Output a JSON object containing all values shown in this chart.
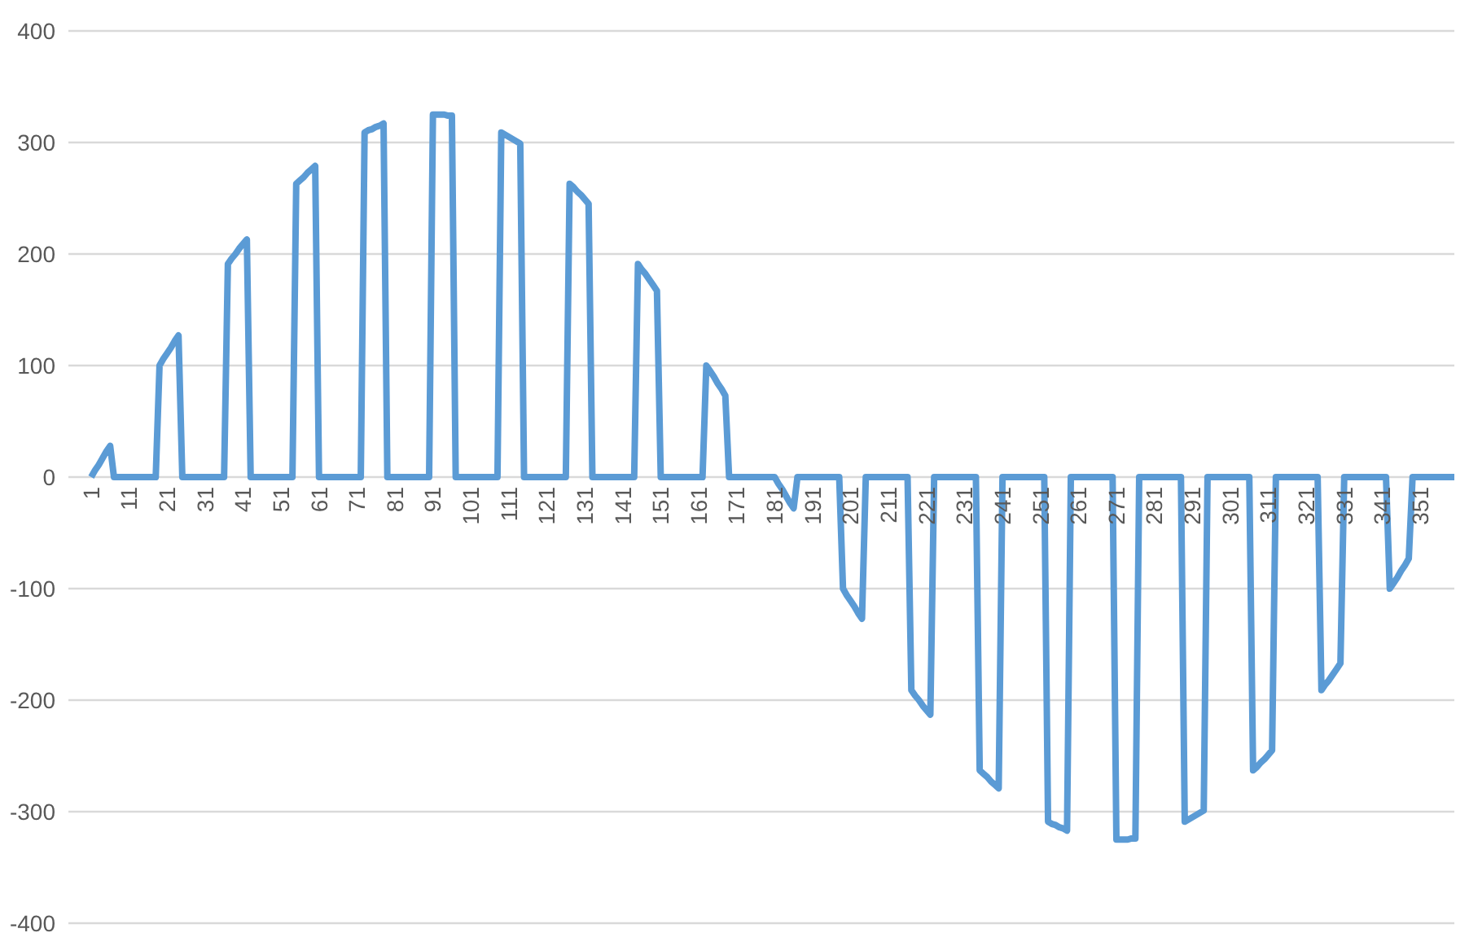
{
  "chart_data": {
    "type": "line",
    "x": [
      1,
      2,
      3,
      4,
      5,
      6,
      7,
      8,
      9,
      10,
      11,
      12,
      13,
      14,
      15,
      16,
      17,
      18,
      19,
      20,
      21,
      22,
      23,
      24,
      25,
      26,
      27,
      28,
      29,
      30,
      31,
      32,
      33,
      34,
      35,
      36,
      37,
      38,
      39,
      40,
      41,
      42,
      43,
      44,
      45,
      46,
      47,
      48,
      49,
      50,
      51,
      52,
      53,
      54,
      55,
      56,
      57,
      58,
      59,
      60,
      61,
      62,
      63,
      64,
      65,
      66,
      67,
      68,
      69,
      70,
      71,
      72,
      73,
      74,
      75,
      76,
      77,
      78,
      79,
      80,
      81,
      82,
      83,
      84,
      85,
      86,
      87,
      88,
      89,
      90,
      91,
      92,
      93,
      94,
      95,
      96,
      97,
      98,
      99,
      100,
      101,
      102,
      103,
      104,
      105,
      106,
      107,
      108,
      109,
      110,
      111,
      112,
      113,
      114,
      115,
      116,
      117,
      118,
      119,
      120,
      121,
      122,
      123,
      124,
      125,
      126,
      127,
      128,
      129,
      130,
      131,
      132,
      133,
      134,
      135,
      136,
      137,
      138,
      139,
      140,
      141,
      142,
      143,
      144,
      145,
      146,
      147,
      148,
      149,
      150,
      151,
      152,
      153,
      154,
      155,
      156,
      157,
      158,
      159,
      160,
      161,
      162,
      163,
      164,
      165,
      166,
      167,
      168,
      169,
      170,
      171,
      172,
      173,
      174,
      175,
      176,
      177,
      178,
      179,
      180,
      181,
      182,
      183,
      184,
      185,
      186,
      187,
      188,
      189,
      190,
      191,
      192,
      193,
      194,
      195,
      196,
      197,
      198,
      199,
      200,
      201,
      202,
      203,
      204,
      205,
      206,
      207,
      208,
      209,
      210,
      211,
      212,
      213,
      214,
      215,
      216,
      217,
      218,
      219,
      220,
      221,
      222,
      223,
      224,
      225,
      226,
      227,
      228,
      229,
      230,
      231,
      232,
      233,
      234,
      235,
      236,
      237,
      238,
      239,
      240,
      241,
      242,
      243,
      244,
      245,
      246,
      247,
      248,
      249,
      250,
      251,
      252,
      253,
      254,
      255,
      256,
      257,
      258,
      259,
      260,
      261,
      262,
      263,
      264,
      265,
      266,
      267,
      268,
      269,
      270,
      271,
      272,
      273,
      274,
      275,
      276,
      277,
      278,
      279,
      280,
      281,
      282,
      283,
      284,
      285,
      286,
      287,
      288,
      289,
      290,
      291,
      292,
      293,
      294,
      295,
      296,
      297,
      298,
      299,
      300,
      301,
      302,
      303,
      304,
      305,
      306,
      307,
      308,
      309,
      310,
      311,
      312,
      313,
      314,
      315,
      316,
      317,
      318,
      319,
      320,
      321,
      322,
      323,
      324,
      325,
      326,
      327,
      328,
      329,
      330,
      331,
      332,
      333,
      334,
      335,
      336,
      337,
      338,
      339,
      340,
      341,
      342,
      343,
      344,
      345,
      346,
      347,
      348,
      349,
      350,
      351,
      352,
      353,
      354,
      355,
      356,
      357,
      358,
      359,
      360
    ],
    "series": [
      {
        "color": "#5b9bd5",
        "values": [
          0,
          6,
          11,
          17,
          23,
          28,
          0,
          0,
          0,
          0,
          0,
          0,
          0,
          0,
          0,
          0,
          0,
          0,
          100,
          106,
          111,
          116,
          122,
          127,
          0,
          0,
          0,
          0,
          0,
          0,
          0,
          0,
          0,
          0,
          0,
          0,
          191,
          196,
          200,
          205,
          209,
          213,
          0,
          0,
          0,
          0,
          0,
          0,
          0,
          0,
          0,
          0,
          0,
          0,
          263,
          266,
          269,
          273,
          276,
          279,
          0,
          0,
          0,
          0,
          0,
          0,
          0,
          0,
          0,
          0,
          0,
          0,
          309,
          311,
          312,
          314,
          315,
          317,
          0,
          0,
          0,
          0,
          0,
          0,
          0,
          0,
          0,
          0,
          0,
          0,
          325,
          325,
          325,
          325,
          324,
          324,
          0,
          0,
          0,
          0,
          0,
          0,
          0,
          0,
          0,
          0,
          0,
          0,
          309,
          307,
          305,
          303,
          301,
          299,
          0,
          0,
          0,
          0,
          0,
          0,
          0,
          0,
          0,
          0,
          0,
          0,
          263,
          260,
          256,
          253,
          249,
          245,
          0,
          0,
          0,
          0,
          0,
          0,
          0,
          0,
          0,
          0,
          0,
          0,
          191,
          186,
          182,
          177,
          172,
          167,
          0,
          0,
          0,
          0,
          0,
          0,
          0,
          0,
          0,
          0,
          0,
          0,
          100,
          95,
          90,
          84,
          79,
          73,
          0,
          0,
          0,
          0,
          0,
          0,
          0,
          0,
          0,
          0,
          0,
          0,
          0,
          -6,
          -11,
          -17,
          -23,
          -28,
          0,
          0,
          0,
          0,
          0,
          0,
          0,
          0,
          0,
          0,
          0,
          0,
          -100,
          -106,
          -111,
          -116,
          -122,
          -127,
          0,
          0,
          0,
          0,
          0,
          0,
          0,
          0,
          0,
          0,
          0,
          0,
          -191,
          -196,
          -200,
          -205,
          -209,
          -213,
          0,
          0,
          0,
          0,
          0,
          0,
          0,
          0,
          0,
          0,
          0,
          0,
          -263,
          -266,
          -269,
          -273,
          -276,
          -279,
          0,
          0,
          0,
          0,
          0,
          0,
          0,
          0,
          0,
          0,
          0,
          0,
          -309,
          -311,
          -312,
          -314,
          -315,
          -317,
          0,
          0,
          0,
          0,
          0,
          0,
          0,
          0,
          0,
          0,
          0,
          0,
          -325,
          -325,
          -325,
          -325,
          -324,
          -324,
          0,
          0,
          0,
          0,
          0,
          0,
          0,
          0,
          0,
          0,
          0,
          0,
          -309,
          -307,
          -305,
          -303,
          -301,
          -299,
          0,
          0,
          0,
          0,
          0,
          0,
          0,
          0,
          0,
          0,
          0,
          0,
          -263,
          -260,
          -256,
          -253,
          -249,
          -245,
          0,
          0,
          0,
          0,
          0,
          0,
          0,
          0,
          0,
          0,
          0,
          0,
          -191,
          -186,
          -182,
          -177,
          -172,
          -167,
          0,
          0,
          0,
          0,
          0,
          0,
          0,
          0,
          0,
          0,
          0,
          0,
          -100,
          -95,
          -90,
          -84,
          -79,
          -73,
          0,
          0,
          0,
          0,
          0,
          0,
          0,
          0,
          0,
          0,
          0,
          0
        ]
      }
    ],
    "xlim": [
      -5,
      360
    ],
    "xticks": [
      1,
      11,
      21,
      31,
      41,
      51,
      61,
      71,
      81,
      91,
      101,
      111,
      121,
      131,
      141,
      151,
      161,
      171,
      181,
      191,
      201,
      211,
      221,
      231,
      241,
      251,
      261,
      271,
      281,
      291,
      301,
      311,
      321,
      331,
      341,
      351
    ],
    "ylim": [
      -400,
      400
    ],
    "yticks": [
      -400,
      -300,
      -200,
      -100,
      0,
      100,
      200,
      300,
      400
    ],
    "grid": "y"
  }
}
